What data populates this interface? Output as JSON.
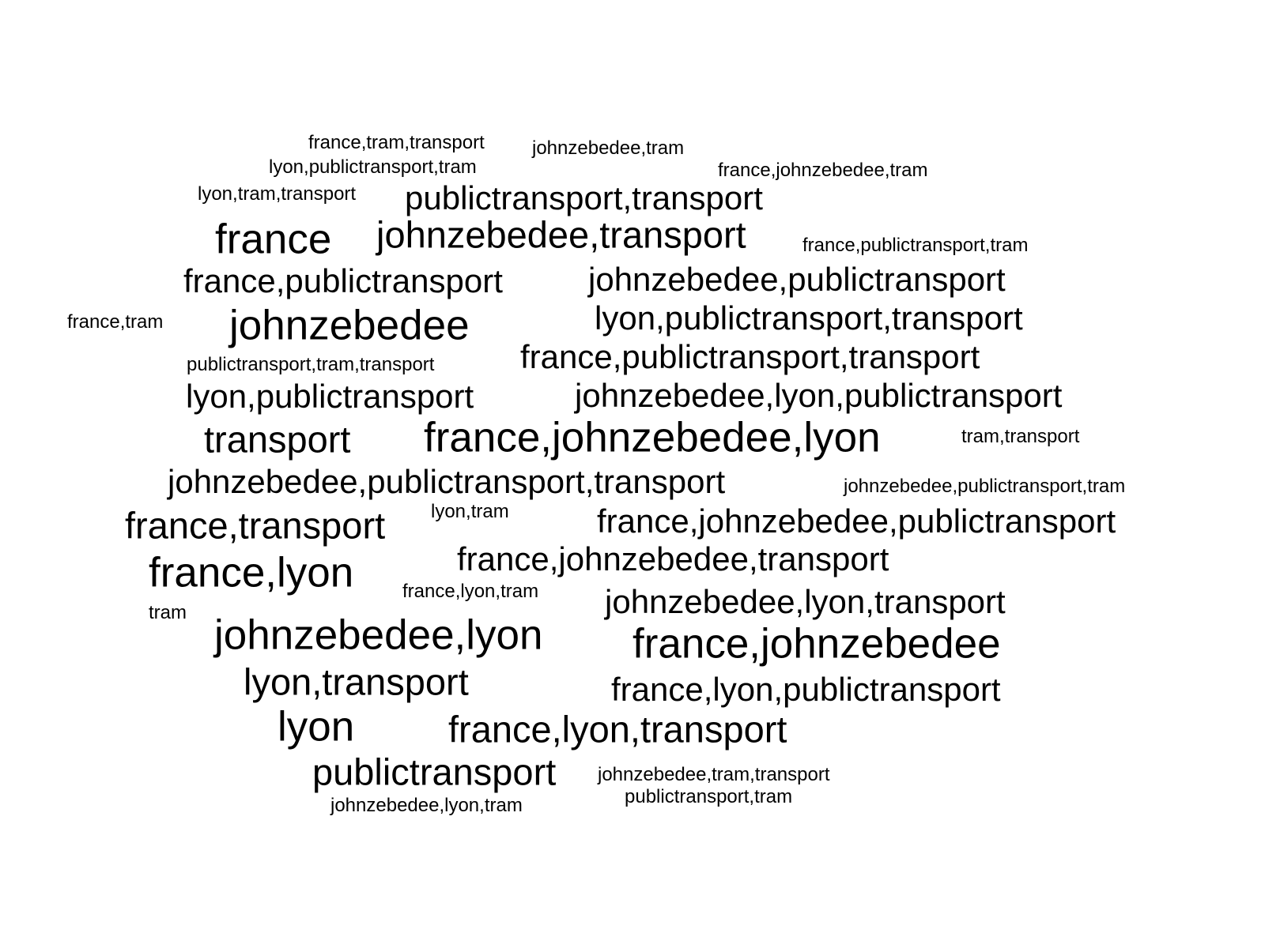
{
  "text_color": "#000000",
  "background_color": "#ffffff",
  "words": [
    {
      "text": "france,tram,transport",
      "weight": 1
    },
    {
      "text": "johnzebedee,tram",
      "weight": 1
    },
    {
      "text": "lyon,publictransport,tram",
      "weight": 1
    },
    {
      "text": "france,johnzebedee,tram",
      "weight": 1
    },
    {
      "text": "lyon,tram,transport",
      "weight": 1
    },
    {
      "text": "publictransport,transport",
      "weight": 3
    },
    {
      "text": "france",
      "weight": 5
    },
    {
      "text": "johnzebedee,transport",
      "weight": 4
    },
    {
      "text": "france,publictransport,tram",
      "weight": 1
    },
    {
      "text": "france,publictransport",
      "weight": 3
    },
    {
      "text": "johnzebedee,publictransport",
      "weight": 3
    },
    {
      "text": "france,tram",
      "weight": 1
    },
    {
      "text": "johnzebedee",
      "weight": 5
    },
    {
      "text": "lyon,publictransport,transport",
      "weight": 3
    },
    {
      "text": "publictransport,tram,transport",
      "weight": 1
    },
    {
      "text": "france,publictransport,transport",
      "weight": 3
    },
    {
      "text": "lyon,publictransport",
      "weight": 3
    },
    {
      "text": "johnzebedee,lyon,publictransport",
      "weight": 3
    },
    {
      "text": "transport",
      "weight": 4
    },
    {
      "text": "france,johnzebedee,lyon",
      "weight": 5
    },
    {
      "text": "tram,transport",
      "weight": 1
    },
    {
      "text": "johnzebedee,publictransport,transport",
      "weight": 3
    },
    {
      "text": "johnzebedee,publictransport,tram",
      "weight": 1
    },
    {
      "text": "france,transport",
      "weight": 4
    },
    {
      "text": "lyon,tram",
      "weight": 1
    },
    {
      "text": "france,johnzebedee,publictransport",
      "weight": 3
    },
    {
      "text": "france,lyon",
      "weight": 5
    },
    {
      "text": "france,johnzebedee,transport",
      "weight": 3
    },
    {
      "text": "france,lyon,tram",
      "weight": 1
    },
    {
      "text": "johnzebedee,lyon,transport",
      "weight": 3
    },
    {
      "text": "tram",
      "weight": 1
    },
    {
      "text": "johnzebedee,lyon",
      "weight": 5
    },
    {
      "text": "france,johnzebedee",
      "weight": 5
    },
    {
      "text": "lyon,transport",
      "weight": 4
    },
    {
      "text": "france,lyon,publictransport",
      "weight": 3
    },
    {
      "text": "lyon",
      "weight": 5
    },
    {
      "text": "france,lyon,transport",
      "weight": 4
    },
    {
      "text": "publictransport",
      "weight": 4
    },
    {
      "text": "johnzebedee,tram,transport",
      "weight": 1
    },
    {
      "text": "publictransport,tram",
      "weight": 1
    },
    {
      "text": "johnzebedee,lyon,tram",
      "weight": 1
    }
  ]
}
